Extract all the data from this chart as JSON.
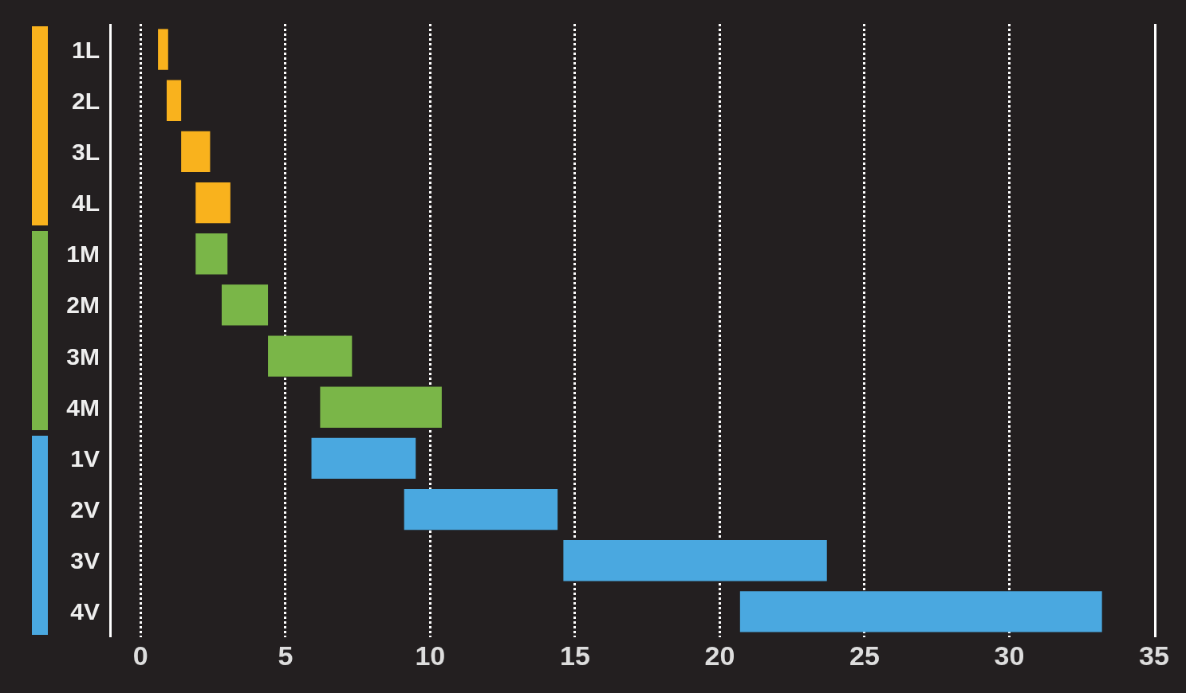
{
  "chart_data": {
    "type": "bar",
    "orientation": "horizontal",
    "categories": [
      "1L",
      "2L",
      "3L",
      "4L",
      "1M",
      "2M",
      "3M",
      "4M",
      "1V",
      "2V",
      "3V",
      "4V"
    ],
    "base": [
      0.6,
      0.9,
      1.4,
      1.9,
      1.9,
      2.8,
      4.4,
      6.2,
      5.9,
      9.1,
      14.6,
      20.7
    ],
    "values": [
      0.35,
      0.5,
      1.0,
      1.2,
      1.1,
      1.6,
      2.9,
      4.2,
      3.6,
      5.3,
      9.1,
      12.5
    ],
    "colors": [
      "#f9b21d",
      "#f9b21d",
      "#f9b21d",
      "#f9b21d",
      "#7ab648",
      "#7ab648",
      "#7ab648",
      "#7ab648",
      "#4aa8e0",
      "#4aa8e0",
      "#4aa8e0",
      "#4aa8e0"
    ],
    "xlim": [
      -1,
      35
    ],
    "xticks": [
      0,
      5,
      10,
      15,
      20,
      25,
      30,
      35
    ],
    "grid": "x"
  }
}
